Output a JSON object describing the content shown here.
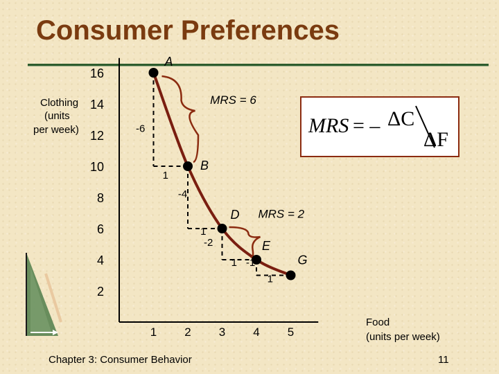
{
  "title": "Consumer Preferences",
  "footer": "Chapter 3: Consumer Behavior",
  "page_number": "11",
  "formula": {
    "lhs": "MRS",
    "eq": "= –",
    "numerator": "ΔC",
    "denominator": "ΔF"
  },
  "colors": {
    "title": "#7a3b10",
    "curve": "#7a1e10",
    "brace": "#8b2b10",
    "box_border": "#8b2b10",
    "rule": "#2f5d2e"
  },
  "chart_data": {
    "type": "line",
    "ylabel": "Clothing (units per week)",
    "ylabel_lines": [
      "Clothing",
      "(units",
      "per week)"
    ],
    "xlabel": "Food (units per week)",
    "xlabel_lines": [
      "Food",
      "(units per week)"
    ],
    "xlim": [
      0,
      5.5
    ],
    "ylim": [
      0,
      16.5
    ],
    "x_ticks": [
      "1",
      "2",
      "3",
      "4",
      "5"
    ],
    "y_ticks": [
      "2",
      "4",
      "6",
      "8",
      "10",
      "12",
      "14",
      "16"
    ],
    "points": [
      {
        "label": "A",
        "x": 1,
        "y": 16
      },
      {
        "label": "B",
        "x": 2,
        "y": 10
      },
      {
        "label": "D",
        "x": 3,
        "y": 6
      },
      {
        "label": "E",
        "x": 4,
        "y": 4
      },
      {
        "label": "G",
        "x": 5,
        "y": 3
      }
    ],
    "step_labels": [
      {
        "text": "-6",
        "x": 0.62,
        "y": 12.2
      },
      {
        "text": "1",
        "x": 1.35,
        "y": 9.2
      },
      {
        "text": "-4",
        "x": 1.85,
        "y": 8.0
      },
      {
        "text": "1",
        "x": 2.45,
        "y": 5.6
      },
      {
        "text": "-2",
        "x": 2.6,
        "y": 4.9
      },
      {
        "text": "1",
        "x": 3.35,
        "y": 3.6
      },
      {
        "text": "-1",
        "x": 3.83,
        "y": 3.6
      },
      {
        "text": "1",
        "x": 4.4,
        "y": 2.55
      }
    ],
    "annotations": [
      {
        "text": "MRS = 6",
        "x": 2.65,
        "y": 14.0
      },
      {
        "text": "MRS = 2",
        "x": 4.05,
        "y": 6.7
      }
    ],
    "grid": false
  }
}
